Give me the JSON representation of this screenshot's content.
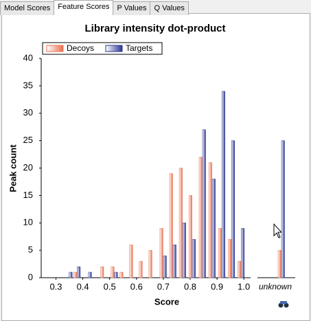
{
  "tabs": [
    "Model Scores",
    "Feature Scores",
    "P Values",
    "Q Values"
  ],
  "selected_tab": 1,
  "chart_data": {
    "type": "bar",
    "title": "Library intensity dot-product",
    "x_label": "Score",
    "y_label": "Peak count",
    "x": [
      0.349,
      0.379,
      0.421,
      0.479,
      0.518,
      0.551,
      0.587,
      0.623,
      0.659,
      0.7,
      0.736,
      0.772,
      0.808,
      0.846,
      0.882,
      0.918,
      0.954,
      0.99
    ],
    "series": [
      {
        "name": "Decoys",
        "color": "#e8704f",
        "values": [
          0,
          1,
          0,
          2,
          2,
          1,
          6,
          3,
          5,
          9,
          19,
          20,
          15,
          22,
          21,
          9,
          7,
          3
        ],
        "extra_value": 5
      },
      {
        "name": "Targets",
        "color": "#2a3590",
        "values": [
          1,
          2,
          1,
          0,
          1,
          0,
          0,
          0,
          0,
          4,
          6,
          10,
          7,
          27,
          18,
          34,
          25,
          9
        ],
        "extra_value": 25
      }
    ],
    "extra_category": "unknown",
    "xlim": [
      0.245,
      1.025
    ],
    "xticks": [
      0.3,
      0.4,
      0.5,
      0.6,
      0.7,
      0.8,
      0.9,
      {
        "value": 1,
        "label": "1.0"
      }
    ],
    "ylim": [
      0,
      40
    ],
    "yticks": [
      0,
      5,
      10,
      15,
      20,
      25,
      30,
      35,
      40
    ],
    "grid": false,
    "legend": "top-left"
  }
}
